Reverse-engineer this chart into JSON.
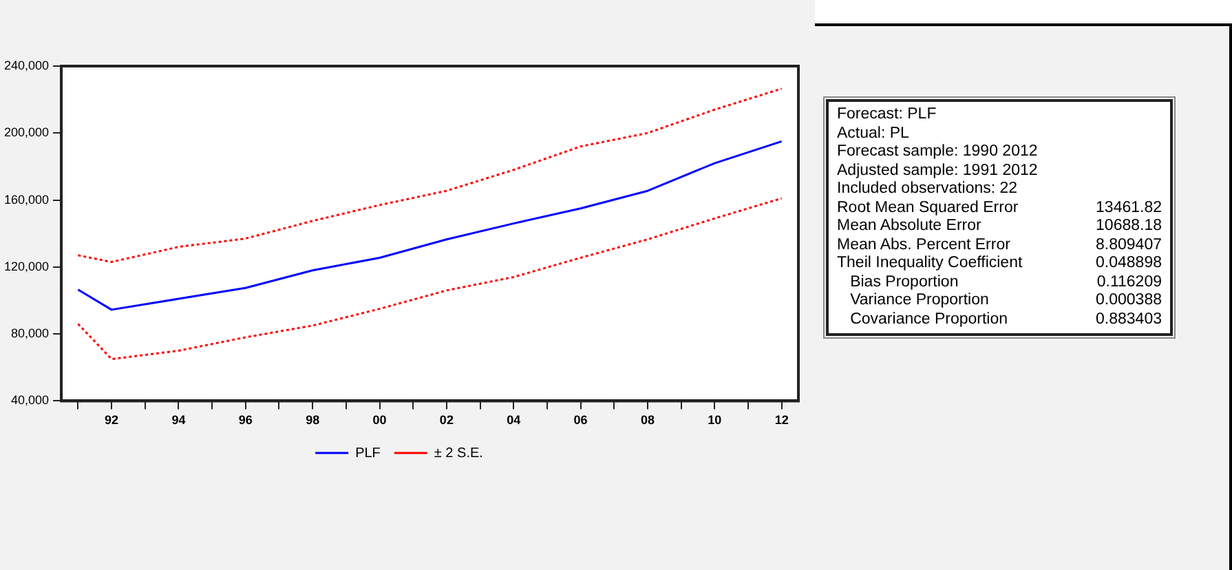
{
  "chart_data": {
    "type": "line",
    "x": [
      1991,
      1992,
      1994,
      1996,
      1998,
      2000,
      2002,
      2004,
      2006,
      2008,
      2010,
      2012
    ],
    "series": [
      {
        "name": "PLF",
        "color": "#0000ff",
        "line_style": "solid",
        "values": [
          106500,
          94500,
          101000,
          107500,
          118000,
          125500,
          136500,
          146000,
          155000,
          165500,
          182000,
          195000
        ]
      },
      {
        "name": "± 2 S.E.",
        "color": "#ff0000",
        "line_style": "dotted",
        "values": [
          127000,
          123000,
          132000,
          137000,
          147500,
          157000,
          165500,
          178000,
          192000,
          200000,
          214000,
          226500
        ]
      },
      {
        "color": "#ff0000",
        "line_style": "dotted",
        "values": [
          86000,
          65000,
          70000,
          78000,
          85000,
          95000,
          106000,
          114000,
          125500,
          136500,
          149000,
          161000
        ]
      }
    ],
    "xlim": [
      1990.5,
      2012.5
    ],
    "xticks": [
      {
        "value": 1991,
        "label": null
      },
      {
        "value": 1992,
        "label": "92"
      },
      {
        "value": 1993,
        "label": null
      },
      {
        "value": 1994,
        "label": "94"
      },
      {
        "value": 1995,
        "label": null
      },
      {
        "value": 1996,
        "label": "96"
      },
      {
        "value": 1997,
        "label": null
      },
      {
        "value": 1998,
        "label": "98"
      },
      {
        "value": 1999,
        "label": null
      },
      {
        "value": 2000,
        "label": "00"
      },
      {
        "value": 2001,
        "label": null
      },
      {
        "value": 2002,
        "label": "02"
      },
      {
        "value": 2003,
        "label": null
      },
      {
        "value": 2004,
        "label": "04"
      },
      {
        "value": 2005,
        "label": null
      },
      {
        "value": 2006,
        "label": "06"
      },
      {
        "value": 2007,
        "label": null
      },
      {
        "value": 2008,
        "label": "08"
      },
      {
        "value": 2009,
        "label": null
      },
      {
        "value": 2010,
        "label": "10"
      },
      {
        "value": 2011,
        "label": null
      },
      {
        "value": 2012,
        "label": "12"
      }
    ],
    "ylim": [
      40000,
      240000
    ],
    "yticks": [
      {
        "value": 40000,
        "label": "40,000"
      },
      {
        "value": 80000,
        "label": "80,000"
      },
      {
        "value": 120000,
        "label": "120,000"
      },
      {
        "value": 160000,
        "label": "160,000"
      },
      {
        "value": 200000,
        "label": "200,000"
      },
      {
        "value": 240000,
        "label": "240,000"
      }
    ],
    "grid": false,
    "legend": "bottom",
    "marker": "none",
    "annotations": [
      "Forecast: PLF",
      "Actual: PL",
      "Forecast sample: 1990 2012",
      "Adjusted sample: 1991 2012",
      "Included observations: 22",
      "Root Mean Squared Error\t13461.82",
      "Mean Absolute Error\t10688.18",
      "Mean Abs. Percent Error\t8.809407",
      "Theil Inequality Coefficient\t0.048898",
      "   Bias Proportion\t0.116209",
      "   Variance Proportion\t0.000388",
      "   Covariance Proportion\t0.883403"
    ]
  }
}
